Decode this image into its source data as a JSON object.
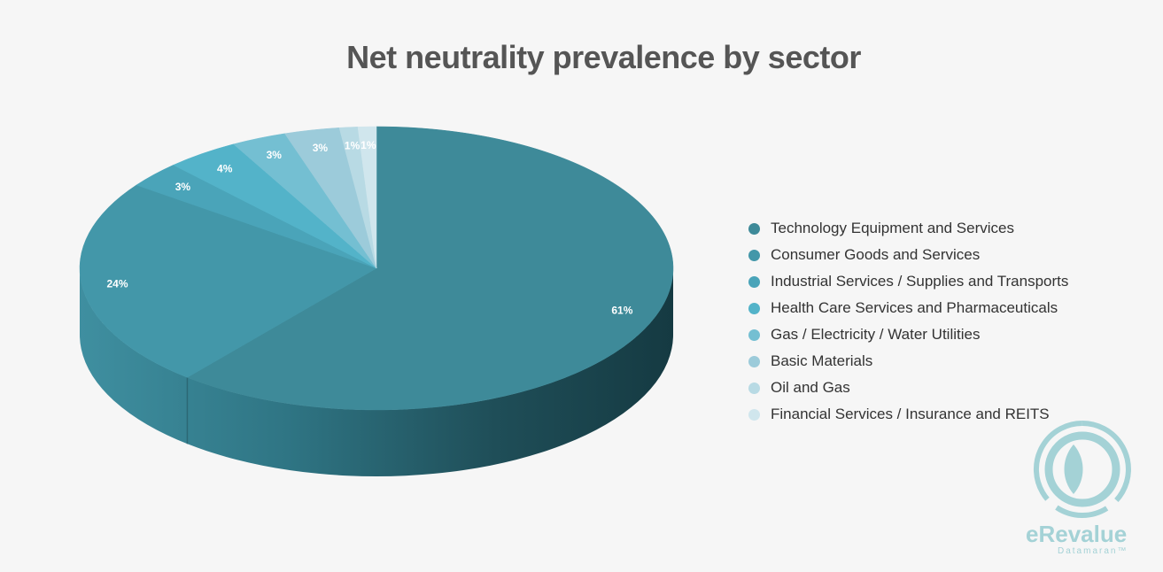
{
  "chart_data": {
    "type": "pie",
    "title": "Net neutrality prevalence by sector",
    "slices": [
      {
        "name": "Technology Equipment and Services",
        "value": 61,
        "label": "61%",
        "color": "#3e8a99"
      },
      {
        "name": "Consumer Goods and Services",
        "value": 24,
        "label": "24%",
        "color": "#4397a9"
      },
      {
        "name": "Industrial Services / Supplies and Transports",
        "value": 3,
        "label": "3%",
        "color": "#4aa4b9"
      },
      {
        "name": "Health Care Services and Pharmaceuticals",
        "value": 4,
        "label": "4%",
        "color": "#53b3c9"
      },
      {
        "name": "Gas / Electricity / Water Utilities",
        "value": 3,
        "label": "3%",
        "color": "#74bfd2"
      },
      {
        "name": "Basic Materials",
        "value": 3,
        "label": "3%",
        "color": "#9ccbda"
      },
      {
        "name": "Oil and Gas",
        "value": 1,
        "label": "1%",
        "color": "#b8dae4"
      },
      {
        "name": "Financial Services / Insurance and REITS",
        "value": 1,
        "label": "1%",
        "color": "#d0e6ed"
      }
    ],
    "legend_position": "right",
    "style": "3d"
  },
  "brand": {
    "name": "eRevalue",
    "tagline": "Datamaran™",
    "color": "#a4d2d6",
    "icon": "datamaran-logo-icon"
  }
}
